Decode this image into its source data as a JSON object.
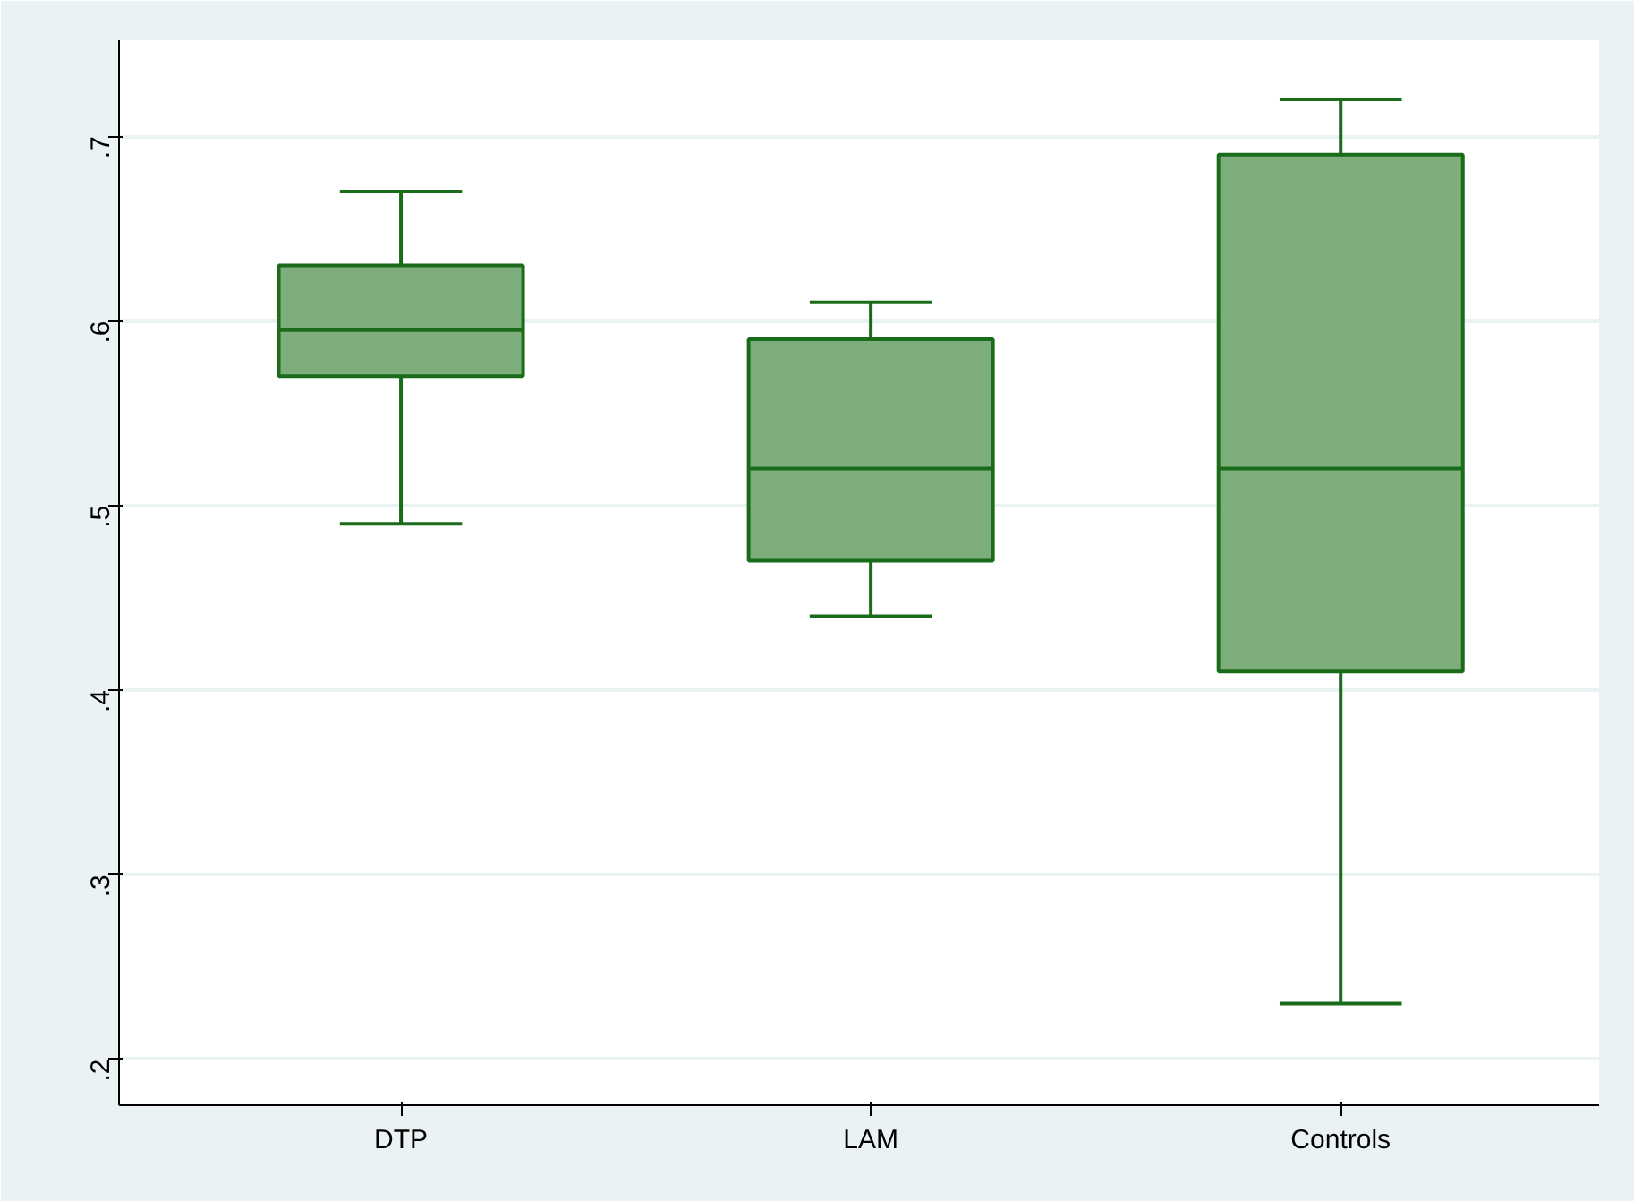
{
  "chart_data": {
    "type": "box",
    "categories": [
      "DTP",
      "LAM",
      "Controls"
    ],
    "series": [
      {
        "color": "#7fae7d",
        "boxes": [
          {
            "low": 0.49,
            "q1": 0.57,
            "median": 0.595,
            "q3": 0.63,
            "high": 0.67
          },
          {
            "low": 0.44,
            "q1": 0.47,
            "median": 0.52,
            "q3": 0.59,
            "high": 0.61
          },
          {
            "low": 0.23,
            "q1": 0.41,
            "median": 0.52,
            "q3": 0.69,
            "high": 0.72
          }
        ]
      }
    ],
    "ylim": [
      0.175,
      0.752
    ],
    "yticks": [
      {
        "value": 0.2,
        "label": ".2"
      },
      {
        "value": 0.3,
        "label": ".3"
      },
      {
        "value": 0.4,
        "label": ".4"
      },
      {
        "value": 0.5,
        "label": ".5"
      },
      {
        "value": 0.6,
        "label": ".6"
      },
      {
        "value": 0.7,
        "label": ".7"
      }
    ],
    "grid": "y"
  }
}
